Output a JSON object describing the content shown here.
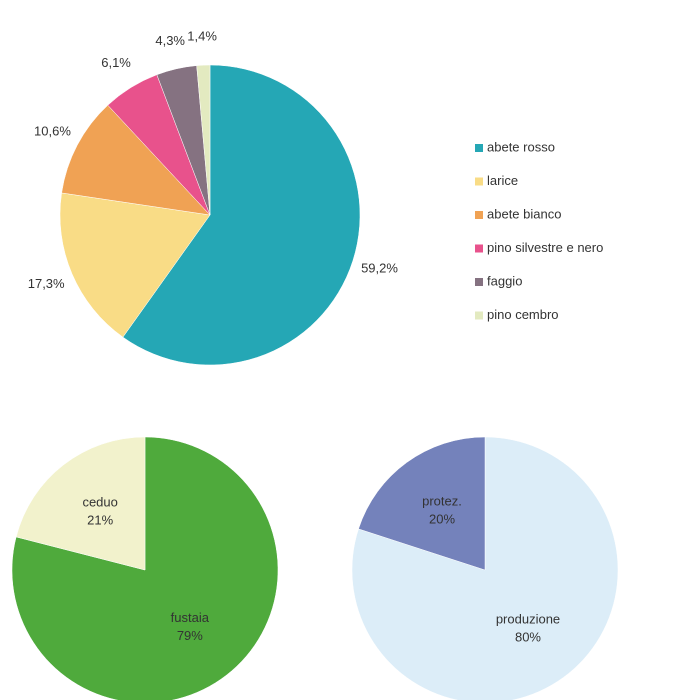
{
  "chart_data": [
    {
      "type": "pie",
      "categories": [
        "abete rosso",
        "larice",
        "abete bianco",
        "pino silvestre e nero",
        "faggio",
        "pino cembro"
      ],
      "values": [
        59.2,
        17.3,
        10.6,
        6.1,
        4.3,
        1.4
      ],
      "value_labels": [
        "59,2%",
        "17,3%",
        "10,6%",
        "6,1%",
        "4,3%",
        "1,4%"
      ],
      "colors": [
        "#25a7b5",
        "#f9dc86",
        "#f0a254",
        "#e8528c",
        "#857281",
        "#e3eac0"
      ],
      "legend": "right"
    },
    {
      "type": "pie",
      "categories": [
        "fustaia",
        "ceduo"
      ],
      "values": [
        79,
        21
      ],
      "value_labels": [
        "79%",
        "21%"
      ],
      "colors": [
        "#4faa3c",
        "#f2f2cc"
      ]
    },
    {
      "type": "pie",
      "categories": [
        "produzione",
        "protez."
      ],
      "values": [
        80,
        20
      ],
      "value_labels": [
        "80%",
        "20%"
      ],
      "colors": [
        "#dcedf8",
        "#7482bb"
      ]
    }
  ]
}
